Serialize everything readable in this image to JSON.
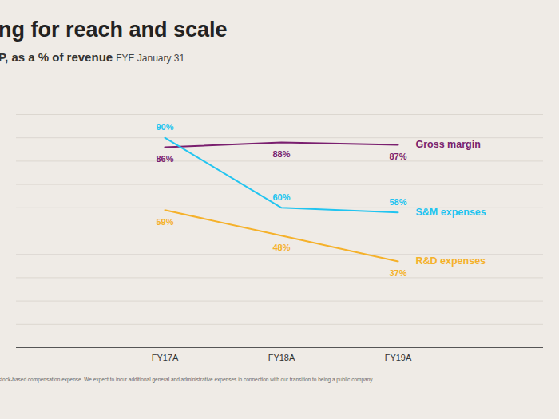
{
  "chart_data": {
    "type": "line",
    "title": "ng for reach and scale",
    "subtitle": [
      "P, as a % of revenue",
      "FYE January 31"
    ],
    "footnote": "stock-based compensation expense. We expect to incur additional general and administrative expenses in connection with our transition to being a public company.",
    "categories": [
      "FY17A",
      "FY18A",
      "FY19A"
    ],
    "series": [
      {
        "name": "Gross margin",
        "color": "#7a1f6f",
        "values": [
          86,
          88,
          87
        ],
        "value_labels": [
          "86%",
          "88%",
          "87%"
        ]
      },
      {
        "name": "S&M expenses",
        "color": "#20c4f0",
        "values": [
          90,
          60,
          58
        ],
        "value_labels": [
          "90%",
          "60%",
          "58%"
        ]
      },
      {
        "name": "R&D expenses",
        "color": "#f5b12a",
        "values": [
          59,
          48,
          37
        ],
        "value_labels": [
          "59%",
          "48%",
          "37%"
        ]
      }
    ],
    "ylim": [
      0,
      100
    ],
    "yticks": [
      0,
      10,
      20,
      30,
      40,
      50,
      60,
      70,
      80,
      90,
      100
    ],
    "grid": true,
    "tick_labels": "x",
    "data_labels": true
  }
}
